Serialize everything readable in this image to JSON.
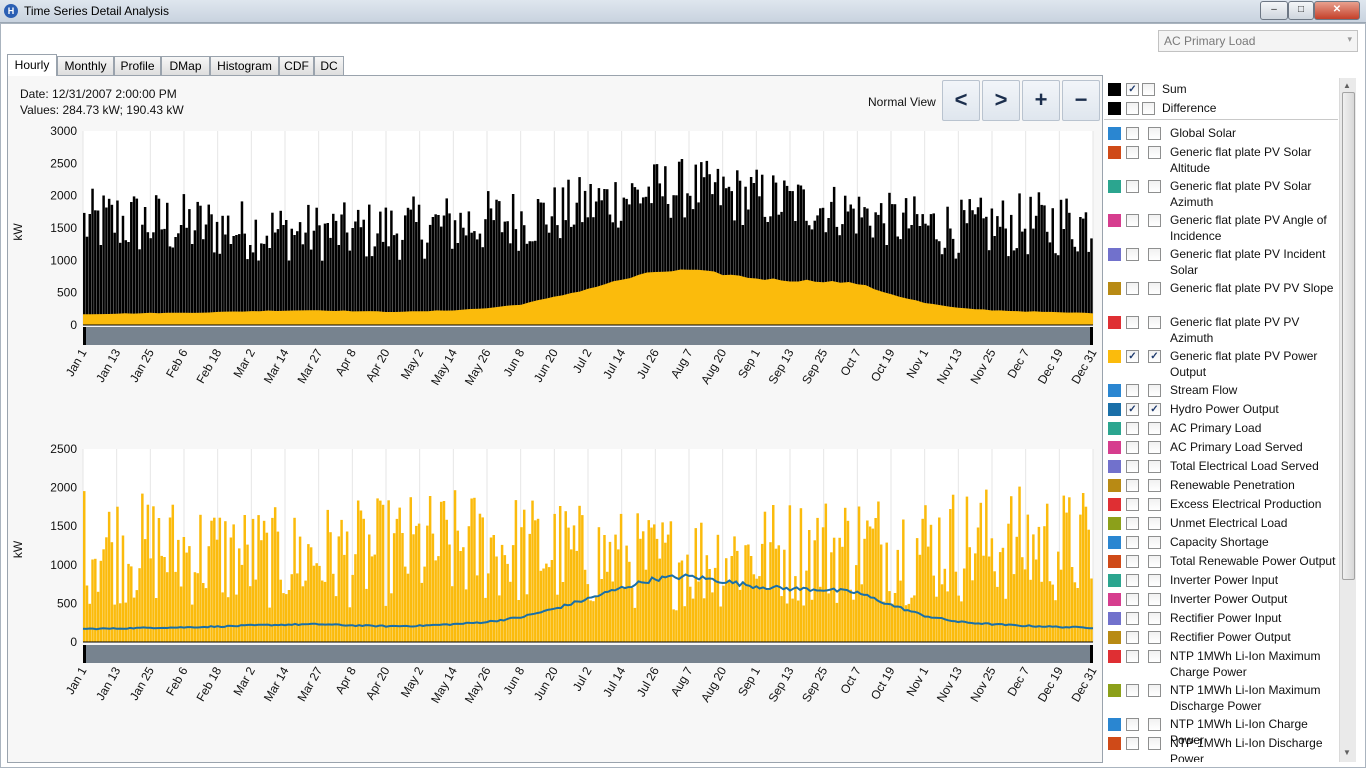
{
  "window": {
    "title": "Time Series Detail Analysis",
    "icon_letter": "H",
    "minimize": "–",
    "maximize": "□",
    "close": "✕"
  },
  "dropdown": {
    "selected": "AC Primary Load",
    "arrow": "▾"
  },
  "tabs": [
    "Hourly",
    "Monthly",
    "Profile",
    "DMap",
    "Histogram",
    "CDF",
    "DC"
  ],
  "active_tab": "Hourly",
  "info": {
    "date_label": "Date:",
    "date_value": "12/31/2007 2:00:00 PM",
    "values_label": "Values:",
    "values_value": "284.73 kW; 190.43 kW"
  },
  "nav": {
    "normal_view": "Normal View",
    "prev": "<",
    "next": ">",
    "zoom_in": "+",
    "zoom_out": "−"
  },
  "legend": {
    "header": [
      {
        "name": "Sum",
        "color": "#000000",
        "cb1": true,
        "cb2": false
      },
      {
        "name": "Difference",
        "color": "#000000",
        "cb1": false,
        "cb2": false
      }
    ],
    "items": [
      {
        "name": "Global Solar",
        "color": "#2a86d1",
        "cb1": false,
        "cb2": false
      },
      {
        "name": "Generic flat plate PV Solar Altitude",
        "color": "#cf4a18",
        "cb1": false,
        "cb2": false
      },
      {
        "name": "Generic flat plate PV Solar Azimuth",
        "color": "#2ba58f",
        "cb1": false,
        "cb2": false
      },
      {
        "name": "Generic flat plate PV Angle of Incidence",
        "color": "#d63d8e",
        "cb1": false,
        "cb2": false
      },
      {
        "name": "Generic flat plate PV Incident Solar",
        "color": "#7171cc",
        "cb1": false,
        "cb2": false
      },
      {
        "name": "Generic flat plate PV PV Slope",
        "color": "#b88a14",
        "cb1": false,
        "cb2": false
      },
      {
        "name": "Generic flat plate PV PV Azimuth",
        "color": "#df2f33",
        "cb1": false,
        "cb2": false
      },
      {
        "name": "Generic flat plate PV Power Output",
        "color": "#fbbb0c",
        "cb1": true,
        "cb2": true
      },
      {
        "name": "Stream Flow",
        "color": "#2a86d1",
        "cb1": false,
        "cb2": false
      },
      {
        "name": "Hydro Power Output",
        "color": "#1a6fa8",
        "cb1": true,
        "cb2": true
      },
      {
        "name": "AC Primary Load",
        "color": "#2ba58f",
        "cb1": false,
        "cb2": false
      },
      {
        "name": "AC Primary Load Served",
        "color": "#d63d8e",
        "cb1": false,
        "cb2": false
      },
      {
        "name": "Total Electrical Load Served",
        "color": "#7171cc",
        "cb1": false,
        "cb2": false
      },
      {
        "name": "Renewable Penetration",
        "color": "#b88a14",
        "cb1": false,
        "cb2": false
      },
      {
        "name": "Excess Electrical Production",
        "color": "#df2f33",
        "cb1": false,
        "cb2": false
      },
      {
        "name": "Unmet Electrical Load",
        "color": "#8ca01a",
        "cb1": false,
        "cb2": false
      },
      {
        "name": "Capacity Shortage",
        "color": "#2a86d1",
        "cb1": false,
        "cb2": false
      },
      {
        "name": "Total Renewable Power Output",
        "color": "#cf4a18",
        "cb1": false,
        "cb2": false
      },
      {
        "name": "Inverter Power Input",
        "color": "#2ba58f",
        "cb1": false,
        "cb2": false
      },
      {
        "name": "Inverter Power Output",
        "color": "#d63d8e",
        "cb1": false,
        "cb2": false
      },
      {
        "name": "Rectifier Power Input",
        "color": "#7171cc",
        "cb1": false,
        "cb2": false
      },
      {
        "name": "Rectifier Power Output",
        "color": "#b88a14",
        "cb1": false,
        "cb2": false
      },
      {
        "name": "NTP 1MWh Li-Ion Maximum Charge Power",
        "color": "#df2f33",
        "cb1": false,
        "cb2": false
      },
      {
        "name": "NTP 1MWh Li-Ion Maximum Discharge Power",
        "color": "#8ca01a",
        "cb1": false,
        "cb2": false
      },
      {
        "name": "NTP 1MWh Li-Ion Charge Power",
        "color": "#2a86d1",
        "cb1": false,
        "cb2": false
      },
      {
        "name": "NTP 1MWh Li-Ion Discharge Power",
        "color": "#cf4a18",
        "cb1": false,
        "cb2": false
      }
    ]
  },
  "chart_data": [
    {
      "type": "area",
      "ylabel": "kW",
      "ylim": [
        0,
        3000
      ],
      "yticks": [
        0,
        500,
        1000,
        1500,
        2000,
        2500,
        3000
      ],
      "xticks": [
        "Jan 1",
        "Jan 13",
        "Jan 25",
        "Feb 6",
        "Feb 18",
        "Mar 2",
        "Mar 14",
        "Mar 27",
        "Apr 8",
        "Apr 20",
        "May 2",
        "May 14",
        "May 26",
        "Jun 8",
        "Jun 20",
        "Jul 2",
        "Jul 14",
        "Jul 26",
        "Aug 7",
        "Aug 20",
        "Sep 1",
        "Sep 13",
        "Sep 25",
        "Oct 7",
        "Oct 19",
        "Nov 1",
        "Nov 13",
        "Nov 25",
        "Dec 7",
        "Dec 19",
        "Dec 31"
      ],
      "stacked": true,
      "series": [
        {
          "name": "Hydro Power Output",
          "color": "#fbbb0c",
          "values": [
            170,
            175,
            185,
            190,
            200,
            215,
            225,
            230,
            215,
            205,
            210,
            230,
            260,
            320,
            430,
            560,
            700,
            820,
            850,
            790,
            720,
            690,
            680,
            640,
            480,
            340,
            260,
            230,
            210,
            195,
            185
          ]
        },
        {
          "name": "Sum",
          "color": "#000000",
          "daily_peak": [
            2100,
            2150,
            2100,
            2050,
            2000,
            1950,
            1900,
            1900,
            1900,
            1950,
            2000,
            2050,
            2100,
            2150,
            2200,
            2350,
            2450,
            2550,
            2600,
            2500,
            2450,
            2350,
            2250,
            2150,
            2050,
            2000,
            1950,
            2000,
            2050,
            2100,
            2100
          ]
        }
      ]
    },
    {
      "type": "area",
      "ylabel": "kW",
      "ylim": [
        0,
        2500
      ],
      "yticks": [
        0,
        500,
        1000,
        1500,
        2000,
        2500
      ],
      "xticks": [
        "Jan 1",
        "Jan 13",
        "Jan 25",
        "Feb 6",
        "Feb 18",
        "Mar 2",
        "Mar 14",
        "Mar 27",
        "Apr 8",
        "Apr 20",
        "May 2",
        "May 14",
        "May 26",
        "Jun 8",
        "Jun 20",
        "Jul 2",
        "Jul 14",
        "Jul 26",
        "Aug 7",
        "Aug 20",
        "Sep 1",
        "Sep 13",
        "Sep 25",
        "Oct 7",
        "Oct 19",
        "Nov 1",
        "Nov 13",
        "Nov 25",
        "Dec 7",
        "Dec 19",
        "Dec 31"
      ],
      "series": [
        {
          "name": "Generic flat plate PV Power Output",
          "color": "#fbbb0c",
          "daily_peak": [
            1950,
            1900,
            1850,
            1800,
            1750,
            1700,
            1650,
            1700,
            1750,
            1800,
            1850,
            1900,
            1900,
            1850,
            1800,
            1700,
            1650,
            1600,
            1650,
            1700,
            1750,
            1800,
            1850,
            1900,
            1900,
            1900,
            1950,
            1950,
            1950,
            1900,
            1900
          ]
        },
        {
          "name": "Hydro Power Output",
          "color": "#1a6fa8",
          "values": [
            170,
            175,
            185,
            190,
            200,
            215,
            225,
            230,
            215,
            205,
            210,
            230,
            260,
            320,
            430,
            560,
            700,
            820,
            850,
            790,
            720,
            690,
            680,
            640,
            480,
            340,
            260,
            230,
            210,
            195,
            185
          ]
        }
      ]
    }
  ]
}
